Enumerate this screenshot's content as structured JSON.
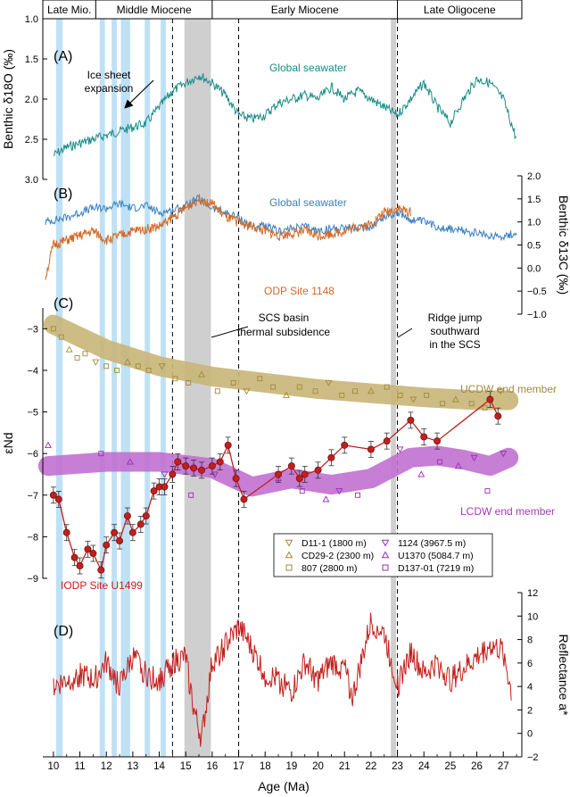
{
  "colors": {
    "teal": "#1a8a86",
    "blue": "#3a7fc1",
    "orange": "#d06a2a",
    "khaki": "#a08a38",
    "khaki_band": "#c9b578",
    "purple_marker": "#9a2fb0",
    "purple_band": "#c170d0",
    "red": "#c0201e",
    "lightblue_band": "#bfe1f5",
    "gray_band": "#cfcfcf"
  },
  "chart_data": {
    "type": "line",
    "xlabel": "Age (Ma)",
    "xlim": [
      9.6,
      27.7
    ],
    "xticks": [
      10,
      11,
      12,
      13,
      14,
      15,
      16,
      17,
      18,
      19,
      20,
      21,
      22,
      23,
      24,
      25,
      26,
      27
    ],
    "epochs": [
      {
        "label": "Late Mio.",
        "from": 9.6,
        "to": 11.6
      },
      {
        "label": "Middle Miocene",
        "from": 11.6,
        "to": 16.0
      },
      {
        "label": "Early Miocene",
        "from": 16.0,
        "to": 23.0
      },
      {
        "label": "Late Oligocene",
        "from": 23.0,
        "to": 27.7
      }
    ],
    "lightblue_bands": [
      [
        10.1,
        10.35
      ],
      [
        11.75,
        11.95
      ],
      [
        12.2,
        12.4
      ],
      [
        12.55,
        12.9
      ],
      [
        13.45,
        13.65
      ],
      [
        14.05,
        14.25
      ]
    ],
    "gray_bands": [
      [
        14.95,
        15.95
      ],
      [
        22.75,
        22.95
      ]
    ],
    "dashed_lines": [
      14.5,
      17.0,
      23.0
    ],
    "panels": [
      {
        "id": "A",
        "label": "(A)",
        "ylabel": "Benthic δ18O (‰)",
        "ylim": [
          3.0,
          1.0
        ],
        "yticks": [
          "1.0",
          "1.5",
          "2.0",
          "2.5",
          "3.0"
        ],
        "ytick_values": [
          1.0,
          1.5,
          2.0,
          2.5,
          3.0
        ],
        "annotations": [
          "Ice sheet",
          "expansion"
        ],
        "series": [
          {
            "name": "Global seawater",
            "color": "teal",
            "x": [
              10.0,
              10.5,
              11.0,
              11.5,
              12.0,
              12.5,
              13.0,
              13.5,
              14.0,
              14.5,
              15.0,
              15.5,
              16.0,
              16.5,
              17.0,
              17.5,
              18.0,
              18.5,
              19.0,
              19.5,
              20.0,
              20.5,
              21.0,
              21.5,
              22.0,
              22.5,
              23.0,
              23.5,
              24.0,
              24.5,
              25.0,
              25.5,
              26.0,
              26.5,
              27.0,
              27.5
            ],
            "y": [
              2.7,
              2.6,
              2.55,
              2.5,
              2.45,
              2.4,
              2.35,
              2.3,
              2.1,
              1.9,
              1.8,
              1.7,
              1.8,
              1.95,
              2.2,
              2.25,
              2.2,
              2.05,
              2.0,
              1.95,
              2.0,
              1.85,
              2.0,
              1.9,
              2.0,
              2.1,
              2.2,
              2.0,
              1.8,
              2.1,
              2.3,
              2.0,
              1.75,
              1.8,
              2.0,
              2.5
            ]
          }
        ]
      },
      {
        "id": "B",
        "label": "(B)",
        "ylabel": "Benthic δ13C (‰)",
        "ylim": [
          -1.0,
          2.0
        ],
        "yticks": [
          "−1.0",
          "−0.5",
          "0.0",
          "0.5",
          "1.0",
          "1.5",
          "2.0"
        ],
        "ytick_values": [
          -1.0,
          -0.5,
          0.0,
          0.5,
          1.0,
          1.5,
          2.0
        ],
        "series": [
          {
            "name": "Global seawater",
            "color": "blue",
            "x": [
              9.7,
              10.5,
              11.0,
              11.5,
              12.0,
              12.5,
              13.0,
              13.5,
              14.0,
              14.5,
              15.0,
              15.5,
              16.0,
              16.5,
              17.0,
              17.5,
              18.0,
              18.5,
              19.0,
              19.5,
              20.0,
              20.5,
              21.0,
              21.5,
              22.0,
              22.5,
              23.0,
              23.5,
              24.0,
              24.5,
              25.0,
              25.5,
              26.0,
              26.5,
              27.0,
              27.5
            ],
            "y": [
              1.0,
              1.1,
              1.2,
              1.3,
              1.3,
              1.4,
              1.3,
              1.35,
              1.2,
              1.25,
              1.35,
              1.5,
              1.3,
              1.2,
              1.1,
              0.9,
              0.9,
              0.8,
              0.85,
              0.9,
              0.8,
              0.85,
              0.9,
              0.85,
              0.9,
              1.1,
              1.2,
              1.05,
              1.0,
              0.9,
              0.85,
              0.8,
              0.75,
              0.7,
              0.7,
              0.75
            ]
          },
          {
            "name": "ODP Site 1148",
            "color": "orange",
            "x": [
              9.7,
              10.0,
              10.5,
              11.0,
              11.5,
              12.0,
              12.5,
              13.0,
              13.5,
              14.0,
              14.5,
              15.0,
              15.5,
              16.0,
              16.5,
              17.0,
              17.5,
              18.0,
              18.5,
              19.0,
              19.5,
              20.0,
              20.5,
              21.0,
              21.5,
              22.0,
              22.5,
              23.0,
              23.5
            ],
            "y": [
              -0.2,
              0.5,
              0.6,
              0.7,
              0.8,
              0.6,
              0.7,
              0.8,
              0.85,
              0.9,
              1.1,
              1.3,
              1.5,
              1.4,
              1.1,
              1.0,
              0.9,
              0.8,
              0.7,
              0.75,
              0.8,
              0.7,
              0.75,
              0.8,
              0.9,
              0.95,
              1.2,
              1.3,
              1.2
            ]
          }
        ]
      },
      {
        "id": "C",
        "label": "(C)",
        "ylabel": "εNd",
        "ylim": [
          -9.0,
          -2.5
        ],
        "yticks": [
          "−3",
          "−4",
          "−5",
          "−6",
          "−7",
          "−8",
          "−9"
        ],
        "ytick_values": [
          -3,
          -4,
          -5,
          -6,
          -7,
          -8,
          -9
        ],
        "annotations": [
          "SCS basin",
          "thermal subsidence",
          "Ridge jump",
          "southward",
          "in the SCS",
          "UCDW end member",
          "LCDW end member"
        ],
        "bands": [
          {
            "name": "UCDW end member",
            "color": "khaki_band",
            "x": [
              10,
              12,
              14,
              16,
              18,
              20,
              22,
              24,
              26,
              27.2
            ],
            "y": [
              -2.9,
              -3.5,
              -3.9,
              -4.15,
              -4.3,
              -4.45,
              -4.55,
              -4.65,
              -4.72,
              -4.72
            ]
          },
          {
            "name": "LCDW end member",
            "color": "purple_band",
            "x": [
              9.8,
              12,
              14,
              16,
              17.5,
              19,
              20.5,
              22,
              23.5,
              24.5,
              25.5,
              26.5,
              27.2
            ],
            "y": [
              -6.3,
              -6.2,
              -6.2,
              -6.35,
              -6.8,
              -6.6,
              -6.75,
              -6.6,
              -6.1,
              -6.05,
              -6.15,
              -6.3,
              -6.1
            ]
          }
        ],
        "series": [
          {
            "name": "IODP Site U1499",
            "color": "red",
            "x": [
              10.0,
              10.2,
              10.5,
              10.8,
              11.0,
              11.3,
              11.5,
              11.8,
              12.0,
              12.3,
              12.5,
              12.8,
              13.0,
              13.3,
              13.5,
              13.8,
              14.0,
              14.2,
              14.5,
              14.7,
              15.0,
              15.3,
              15.6,
              16.0,
              16.3,
              16.6,
              16.9,
              17.2,
              18.5,
              19.0,
              19.3,
              19.5,
              20.0,
              20.5,
              21.0,
              22.0,
              22.6,
              23.5,
              24.0,
              24.5,
              26.5,
              26.8
            ],
            "y": [
              -7.0,
              -7.1,
              -7.9,
              -8.5,
              -8.7,
              -8.3,
              -8.4,
              -8.8,
              -8.2,
              -7.9,
              -8.1,
              -7.5,
              -7.9,
              -7.7,
              -7.5,
              -6.9,
              -6.8,
              -6.8,
              -6.5,
              -6.2,
              -6.3,
              -6.35,
              -6.4,
              -6.3,
              -6.2,
              -5.8,
              -6.6,
              -7.1,
              -6.5,
              -6.3,
              -6.6,
              -6.5,
              -6.4,
              -6.1,
              -5.8,
              -5.9,
              -5.7,
              -5.2,
              -5.6,
              -5.7,
              -4.7,
              -5.1
            ]
          }
        ],
        "legend": [
          {
            "label": "D11-1 (1800 m)",
            "marker": "triangle-down",
            "color": "khaki"
          },
          {
            "label": "CD29-2 (2300 m)",
            "marker": "triangle-up",
            "color": "khaki"
          },
          {
            "label": "807 (2800 m)",
            "marker": "square",
            "color": "khaki"
          },
          {
            "label": "1124 (3967.5 m)",
            "marker": "triangle-down",
            "color": "purple_marker"
          },
          {
            "label": "U1370 (5084.7 m)",
            "marker": "triangle-up",
            "color": "purple_marker"
          },
          {
            "label": "D137-01 (7219 m)",
            "marker": "square",
            "color": "purple_marker"
          }
        ],
        "scatter_khaki": {
          "x": [
            10.0,
            10.3,
            10.6,
            10.9,
            11.2,
            11.6,
            12.0,
            12.4,
            12.8,
            13.2,
            13.6,
            14.1,
            14.6,
            15.1,
            15.6,
            16.2,
            16.8,
            17.3,
            17.8,
            18.3,
            18.8,
            19.3,
            19.9,
            20.4,
            20.9,
            21.4,
            22.0,
            22.6,
            23.1,
            23.6,
            24.1,
            24.7,
            25.2,
            25.8,
            26.3,
            26.9
          ],
          "y": [
            -3.0,
            -3.2,
            -3.5,
            -3.7,
            -3.6,
            -3.8,
            -3.9,
            -4.0,
            -3.8,
            -3.9,
            -4.0,
            -3.9,
            -4.2,
            -4.3,
            -4.1,
            -4.5,
            -4.3,
            -4.5,
            -4.2,
            -4.4,
            -4.6,
            -4.4,
            -4.5,
            -4.3,
            -4.6,
            -4.5,
            -4.5,
            -4.4,
            -4.6,
            -4.7,
            -4.6,
            -4.8,
            -4.7,
            -4.8,
            -4.9,
            -4.5
          ]
        },
        "scatter_purple": {
          "x": [
            9.8,
            11.8,
            12.9,
            14.2,
            15.2,
            16.1,
            18.5,
            19.4,
            20.3,
            20.8,
            21.5,
            23.1,
            23.9,
            24.6,
            25.3,
            25.9,
            26.4,
            27.0
          ],
          "y": [
            -5.8,
            -6.0,
            -6.2,
            -6.5,
            -7.0,
            -6.5,
            -6.6,
            -6.9,
            -7.1,
            -6.9,
            -7.0,
            -5.9,
            -6.5,
            -6.2,
            -6.3,
            -6.1,
            -6.9,
            -6.0
          ]
        }
      },
      {
        "id": "D",
        "label": "(D)",
        "ylabel": "Reflectance a*",
        "ylim": [
          -2,
          12
        ],
        "yticks": [
          "−2",
          "0",
          "2",
          "4",
          "6",
          "8",
          "10",
          "12"
        ],
        "ytick_values": [
          -2,
          0,
          2,
          4,
          6,
          8,
          10,
          12
        ],
        "series": [
          {
            "name": "",
            "color": "red",
            "x": [
              10.0,
              10.5,
              11.0,
              11.5,
              12.0,
              12.5,
              13.0,
              13.5,
              14.0,
              14.5,
              15.0,
              15.3,
              15.6,
              16.0,
              16.5,
              17.0,
              17.3,
              18.0,
              18.5,
              19.0,
              19.5,
              20.0,
              20.5,
              21.0,
              21.3,
              22.0,
              22.5,
              23.0,
              23.5,
              24.0,
              24.5,
              25.0,
              26.0,
              26.5,
              27.0,
              27.3
            ],
            "y": [
              4.0,
              4.5,
              5.0,
              4.5,
              6.0,
              4.0,
              6.5,
              5.0,
              4.5,
              6.0,
              6.5,
              2.0,
              -0.5,
              6.0,
              7.5,
              9.0,
              8.0,
              5.0,
              4.5,
              3.5,
              6.0,
              4.5,
              6.0,
              5.5,
              3.0,
              9.5,
              8.5,
              4.0,
              7.0,
              5.0,
              6.0,
              4.5,
              6.5,
              7.5,
              7.0,
              3.5
            ]
          }
        ]
      }
    ]
  }
}
